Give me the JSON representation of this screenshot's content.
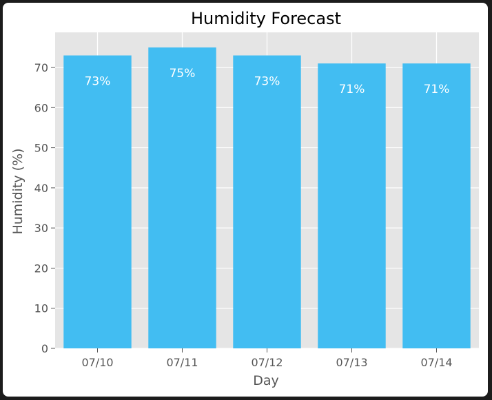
{
  "chart_data": {
    "type": "bar",
    "title": "Humidity Forecast",
    "xlabel": "Day",
    "ylabel": "Humidity (%)",
    "categories": [
      "07/10",
      "07/11",
      "07/12",
      "07/13",
      "07/14"
    ],
    "values": [
      73,
      75,
      73,
      71,
      71
    ],
    "data_labels": [
      "73%",
      "75%",
      "73%",
      "71%",
      "71%"
    ],
    "yticks": [
      0,
      10,
      20,
      30,
      40,
      50,
      60,
      70
    ],
    "ylim": [
      0,
      78.75
    ],
    "grid": true,
    "legend": "none",
    "colors": {
      "bar": "#42bdf2",
      "plot_background": "#e5e5e5",
      "grid": "#ffffff",
      "data_label": "#ffffff",
      "tick_label": "#555555",
      "axis_label": "#555555",
      "title": "#000000",
      "page_background": "#1c1c1c",
      "frame": "#ffffff"
    }
  }
}
